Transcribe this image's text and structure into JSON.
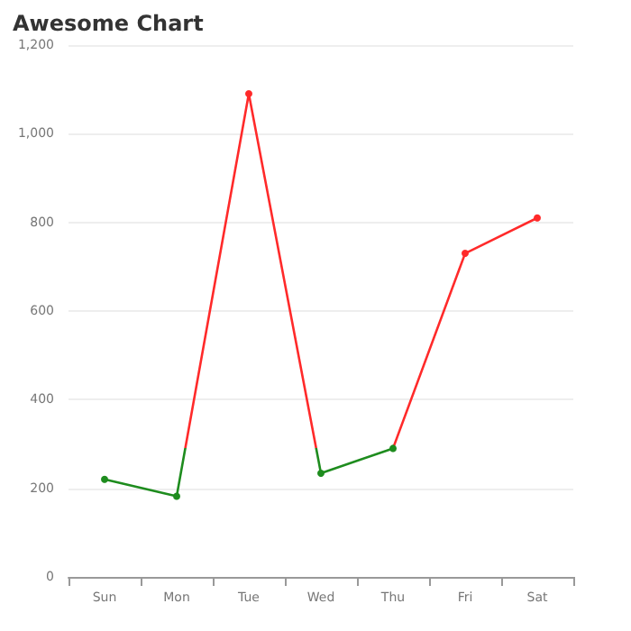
{
  "chart_data": {
    "type": "line",
    "title": "Awesome Chart",
    "categories": [
      "Sun",
      "Mon",
      "Tue",
      "Wed",
      "Thu",
      "Fri",
      "Sat"
    ],
    "series": [
      {
        "values": [
          220,
          182,
          1090,
          234,
          290,
          730,
          810
        ],
        "colors": [
          "#1e8c1e",
          "#1e8c1e",
          "#ff2a2a",
          "#1e8c1e",
          "#1e8c1e",
          "#ff2a2a",
          "#ff2a2a"
        ]
      }
    ],
    "ylim": [
      0,
      1200
    ],
    "yticks": [
      0,
      200,
      400,
      600,
      800,
      {
        "value": 1000,
        "label": "1,000"
      },
      {
        "value": 1200,
        "label": "1,200"
      }
    ],
    "grid": "y",
    "marker": "circle",
    "line_style": "solid"
  }
}
